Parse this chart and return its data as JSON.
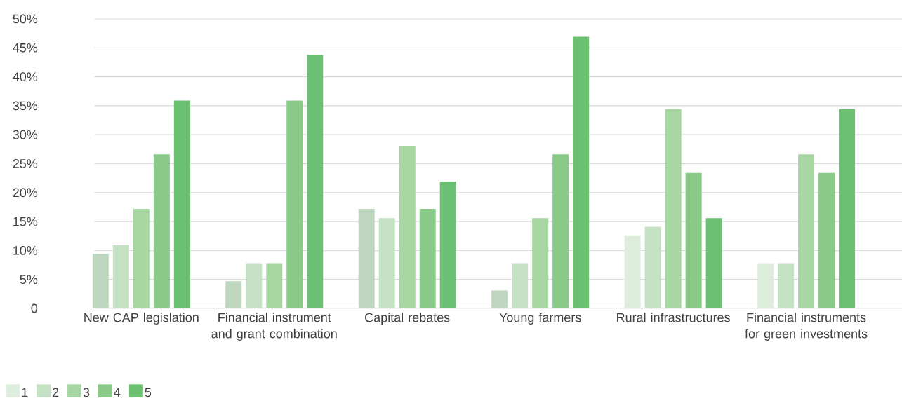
{
  "chart_data": {
    "type": "bar",
    "categories": [
      "New CAP legislation",
      "Financial instrument and grant combination",
      "Capital rebates",
      "Young farmers",
      "Rural infrastructures",
      "Financial instruments for green investments"
    ],
    "series": [
      {
        "name": "1",
        "color": "#deeedd",
        "colors": [
          "#c0d7bf",
          "#c0d7bf",
          "#c0d7bf",
          "#c0d7bf",
          "#deeedd",
          "#deeedd"
        ],
        "values": [
          9.4,
          4.7,
          17.2,
          3.1,
          12.5,
          7.8
        ]
      },
      {
        "name": "2",
        "color": "#c4e2c3",
        "values": [
          10.9,
          7.8,
          15.6,
          7.8,
          14.1,
          7.8
        ]
      },
      {
        "name": "3",
        "color": "#a8d6a3",
        "values": [
          17.2,
          7.8,
          28.1,
          15.6,
          34.4,
          26.6
        ]
      },
      {
        "name": "4",
        "color": "#8aca88",
        "values": [
          26.6,
          35.9,
          17.2,
          26.6,
          23.4,
          23.4
        ]
      },
      {
        "name": "5",
        "color": "#6cc072",
        "values": [
          35.9,
          43.8,
          21.9,
          46.9,
          15.6,
          34.4
        ]
      }
    ],
    "ylim": [
      0,
      50
    ],
    "yticks": [
      {
        "value": 0,
        "label": "0"
      },
      {
        "value": 5,
        "label": "5%"
      },
      {
        "value": 10,
        "label": "10%"
      },
      {
        "value": 15,
        "label": "15%"
      },
      {
        "value": 20,
        "label": "20%"
      },
      {
        "value": 25,
        "label": "25%"
      },
      {
        "value": 30,
        "label": "30%"
      },
      {
        "value": 35,
        "label": "35%"
      },
      {
        "value": 40,
        "label": "40%"
      },
      {
        "value": 45,
        "label": "45%"
      },
      {
        "value": 50,
        "label": "50%"
      }
    ],
    "grid": "y",
    "legend": "bottom left"
  }
}
